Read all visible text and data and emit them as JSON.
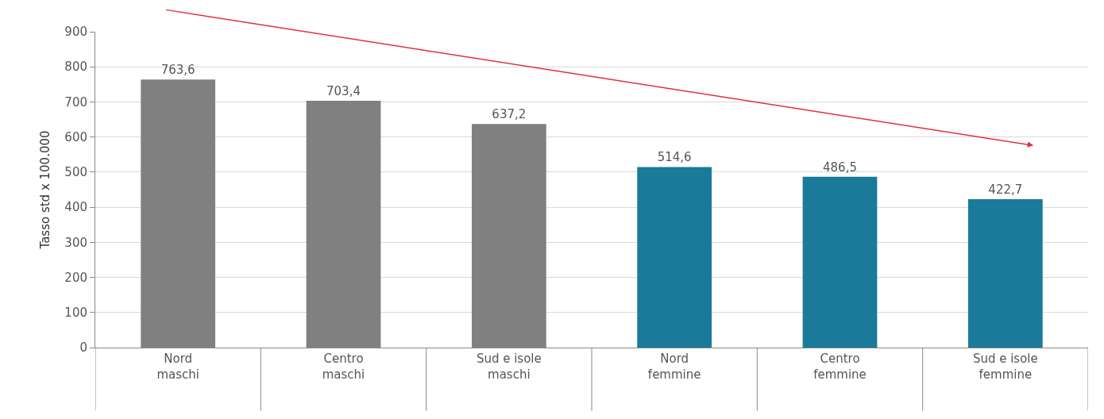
{
  "chart_data": {
    "type": "bar",
    "ylabel": "Tasso std x 100.000",
    "categories": [
      "Nord\nmaschi",
      "Centro\nmaschi",
      "Sud e isole\nmaschi",
      "Nord\nfemmine",
      "Centro\nfemmine",
      "Sud e isole\nfemmine"
    ],
    "values": [
      763.6,
      703.4,
      637.2,
      514.6,
      486.5,
      422.7
    ],
    "colors": [
      "#808080",
      "#808080",
      "#808080",
      "#1a7a99",
      "#1a7a99",
      "#1a7a99"
    ],
    "value_labels": [
      "763,6",
      "703,4",
      "637,2",
      "514,6",
      "486,5",
      "422,7"
    ],
    "ylim": [
      0,
      900
    ],
    "yticks": [
      0,
      100,
      200,
      300,
      400,
      500,
      600,
      700,
      800,
      900
    ],
    "grid": "y"
  }
}
